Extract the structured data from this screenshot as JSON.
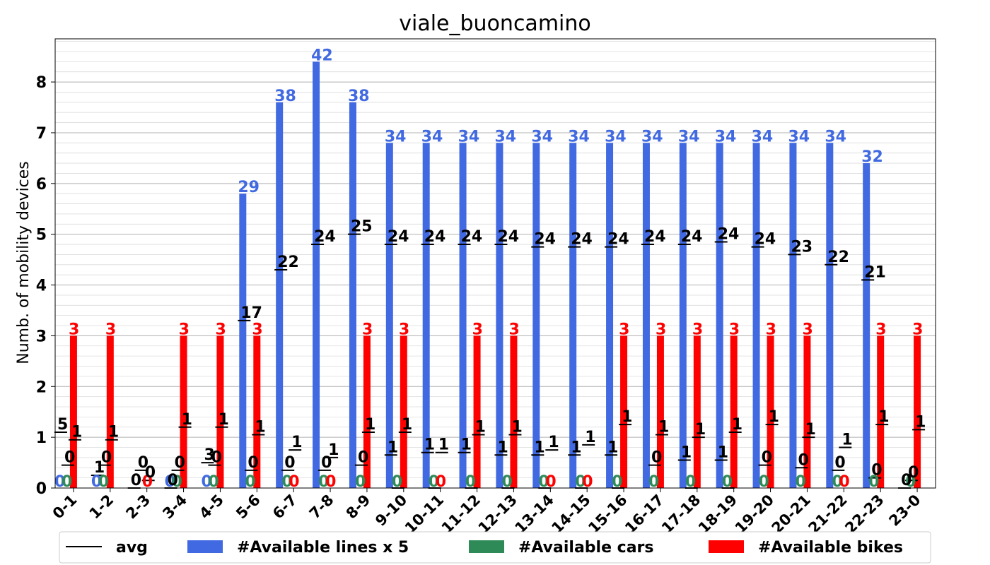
{
  "chart_data": {
    "type": "bar",
    "title": "viale_buoncamino",
    "xlabel": "",
    "ylabel": "Numb. of mobility devices",
    "ylim": [
      0,
      8.85
    ],
    "yticks": [
      "0",
      "1",
      "2",
      "3",
      "4",
      "5",
      "6",
      "7",
      "8"
    ],
    "grid": true,
    "legend_position": "bottom",
    "categories": [
      "0-1",
      "1-2",
      "2-3",
      "3-4",
      "4-5",
      "5-6",
      "6-7",
      "7-8",
      "8-9",
      "9-10",
      "10-11",
      "11-12",
      "12-13",
      "13-14",
      "14-15",
      "15-16",
      "16-17",
      "17-18",
      "18-19",
      "19-20",
      "20-21",
      "21-22",
      "22-23",
      "23-0"
    ],
    "series": [
      {
        "name": "#Available lines x 5",
        "color": "#4169e1",
        "values": [
          0,
          0,
          0,
          0,
          0,
          5.8,
          7.6,
          8.4,
          7.6,
          6.8,
          6.8,
          6.8,
          6.8,
          6.8,
          6.8,
          6.8,
          6.8,
          6.8,
          6.8,
          6.8,
          6.8,
          6.8,
          6.4,
          0
        ],
        "labels": [
          "0",
          "0",
          "",
          "0",
          "0",
          "29",
          "38",
          "42",
          "38",
          "34",
          "34",
          "34",
          "34",
          "34",
          "34",
          "34",
          "34",
          "34",
          "34",
          "34",
          "34",
          "34",
          "32",
          ""
        ]
      },
      {
        "name": "#Available cars",
        "color": "#2e8b57",
        "values": [
          0,
          0,
          0,
          0,
          0,
          0,
          0,
          0,
          0,
          0,
          0,
          0,
          0,
          0,
          0,
          0,
          0,
          0,
          0,
          0,
          0,
          0,
          0,
          0
        ],
        "labels": [
          "0",
          "0",
          "",
          "0",
          "0",
          "0",
          "0",
          "0",
          "0",
          "0",
          "0",
          "0",
          "0",
          "0",
          "0",
          "0",
          "0",
          "0",
          "0",
          "0",
          "0",
          "0",
          "0",
          "0"
        ]
      },
      {
        "name": "#Available bikes",
        "color": "#ff0000",
        "values": [
          3,
          3,
          0,
          3,
          3,
          3,
          0,
          0,
          3,
          3,
          0,
          3,
          3,
          0,
          0,
          3,
          3,
          3,
          3,
          3,
          3,
          0,
          3,
          3
        ],
        "labels": [
          "3",
          "3",
          "0",
          "3",
          "3",
          "3",
          "0",
          "0",
          "3",
          "3",
          "0",
          "3",
          "3",
          "0",
          "0",
          "3",
          "3",
          "3",
          "3",
          "3",
          "3",
          "0",
          "3",
          "3"
        ]
      }
    ],
    "avg": {
      "name": "avg",
      "color": "#000000",
      "lines": [
        1.1,
        0.25,
        0.0,
        0.0,
        0.5,
        3.3,
        4.3,
        4.8,
        5.0,
        4.8,
        4.8,
        4.8,
        4.8,
        4.75,
        4.75,
        4.75,
        4.8,
        4.8,
        4.85,
        4.75,
        4.6,
        4.4,
        4.1,
        0.0
      ],
      "lines_labels": [
        "5",
        "1",
        "0",
        "0",
        "3",
        "17",
        "22",
        "24",
        "25",
        "24",
        "24",
        "24",
        "24",
        "24",
        "24",
        "24",
        "24",
        "24",
        "24",
        "24",
        "23",
        "22",
        "21",
        "0"
      ],
      "cars": [
        0.45,
        0.45,
        0.35,
        0.35,
        0.45,
        0.35,
        0.35,
        0.35,
        0.45,
        0.0,
        0.0,
        0.0,
        0.0,
        0.0,
        0.0,
        0.0,
        0.45,
        0.0,
        0.0,
        0.45,
        0.4,
        0.35,
        0.2,
        0.15
      ],
      "cars_labels": [
        "0",
        "0",
        "0",
        "0",
        "0",
        "0",
        "0",
        "0",
        "0",
        "",
        "",
        "",
        "",
        "",
        "",
        "",
        "0",
        "",
        "",
        "0",
        "0",
        "0",
        "0",
        "0"
      ],
      "bikes": [
        0.95,
        0.95,
        0.15,
        1.2,
        1.2,
        1.05,
        0.75,
        0.6,
        1.1,
        1.1,
        0.7,
        1.05,
        1.05,
        0.75,
        0.85,
        1.25,
        1.05,
        1.0,
        1.1,
        1.25,
        1.0,
        0.8,
        1.25,
        1.15
      ],
      "bikes_labels": [
        "1",
        "1",
        "0",
        "1",
        "1",
        "1",
        "1",
        "1",
        "1",
        "1",
        "1",
        "1",
        "1",
        "1",
        "1",
        "1",
        "1",
        "1",
        "1",
        "1",
        "1",
        "1",
        "1",
        "1"
      ],
      "extra_values": [
        null,
        null,
        null,
        null,
        null,
        null,
        null,
        null,
        null,
        0.65,
        0.7,
        0.7,
        0.65,
        0.65,
        0.65,
        0.65,
        null,
        0.55,
        0.55,
        null,
        null,
        null,
        null,
        null
      ],
      "extra_labels": [
        "",
        "",
        "",
        "",
        "",
        "",
        "",
        "",
        "",
        "1",
        "1",
        "1",
        "1",
        "1",
        "1",
        "1",
        "",
        "1",
        "1",
        "",
        "",
        "",
        "",
        ""
      ]
    }
  }
}
